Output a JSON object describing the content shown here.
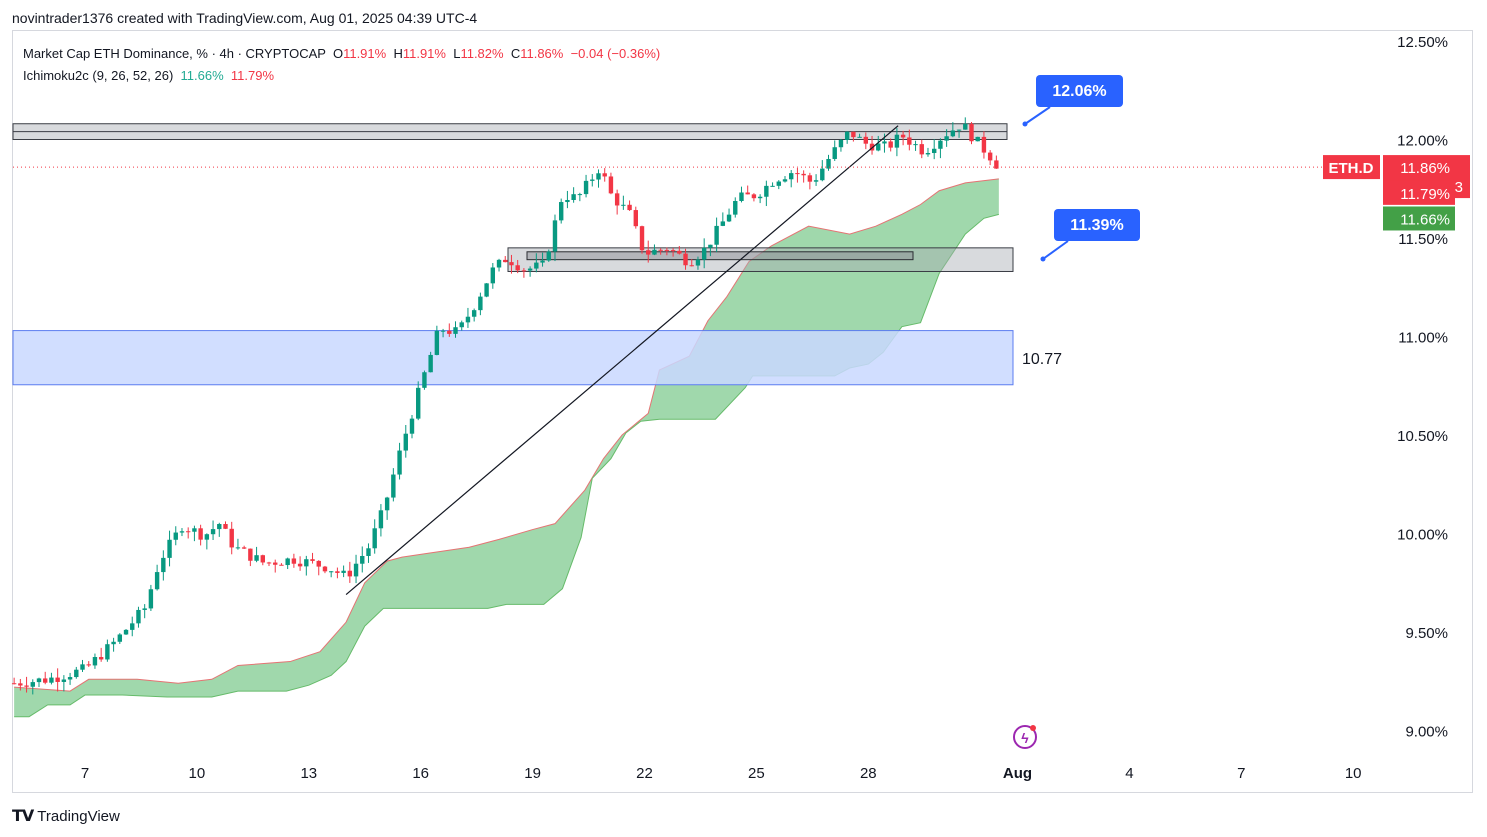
{
  "header": {
    "created_line": "novintrader1376 created with TradingView.com, Aug 01, 2025 04:39 UTC-4"
  },
  "legend": {
    "instrument": "Market Cap ETH Dominance, % · 4h · CRYPTOCAP",
    "o_label": "O",
    "o_value": "11.91%",
    "h_label": "H",
    "h_value": "11.91%",
    "l_label": "L",
    "l_value": "11.82%",
    "c_label": "C",
    "c_value": "11.86%",
    "change": "−0.04 (−0.36%)",
    "indicator": "Ichimoku2c (9, 26, 52, 26)",
    "indicator_v1": "11.66%",
    "indicator_v2": "11.79%"
  },
  "price_axis": {
    "ticks": [
      "12.50%",
      "12.00%",
      "11.50%",
      "11.00%",
      "10.50%",
      "10.00%",
      "9.50%",
      "9.00%"
    ],
    "symbol_tag": "ETH.D",
    "last_price": "11.86%",
    "countdown": "03:20:13",
    "cloud_red_tag": "11.79%",
    "cloud_green_tag": "11.66%"
  },
  "annotations": {
    "callout_upper": "12.06%",
    "callout_lower": "11.39%",
    "zone_label": "10.77"
  },
  "colors": {
    "up": "#089981",
    "down": "#f23645",
    "cloud": "#8fd19e",
    "zone_blue": "#c9d8ff",
    "callout": "#2962ff"
  },
  "brand": {
    "name": "TradingView"
  },
  "chart_data": {
    "type": "candlestick",
    "title": "Market Cap ETH Dominance, % · 4h · CRYPTOCAP",
    "ylim": [
      8.95,
      12.55
    ],
    "y_ticks": [
      9.0,
      9.5,
      10.0,
      10.5,
      11.0,
      11.5,
      12.0,
      12.5
    ],
    "x_ticks": [
      "7",
      "10",
      "13",
      "16",
      "19",
      "22",
      "25",
      "28",
      "Aug",
      "4",
      "7",
      "10"
    ],
    "x_range_days": [
      5.1,
      10.4
    ],
    "approx_close_path": [
      [
        5.1,
        9.24
      ],
      [
        6.0,
        9.26
      ],
      [
        7.0,
        9.31
      ],
      [
        7.8,
        9.45
      ],
      [
        8.6,
        9.62
      ],
      [
        9.0,
        9.86
      ],
      [
        9.6,
        10.04
      ],
      [
        10.2,
        9.99
      ],
      [
        10.6,
        10.05
      ],
      [
        11.0,
        9.93
      ],
      [
        11.8,
        9.85
      ],
      [
        12.6,
        9.87
      ],
      [
        13.5,
        9.83
      ],
      [
        14.0,
        9.78
      ],
      [
        14.6,
        9.93
      ],
      [
        15.0,
        10.12
      ],
      [
        15.5,
        10.45
      ],
      [
        16.0,
        10.75
      ],
      [
        16.5,
        11.04
      ],
      [
        17.0,
        11.02
      ],
      [
        17.5,
        11.18
      ],
      [
        17.9,
        11.33
      ],
      [
        18.3,
        11.4
      ],
      [
        18.8,
        11.34
      ],
      [
        19.3,
        11.36
      ],
      [
        19.8,
        11.72
      ],
      [
        20.2,
        11.7
      ],
      [
        20.8,
        11.86
      ],
      [
        21.1,
        11.72
      ],
      [
        21.6,
        11.62
      ],
      [
        22.0,
        11.42
      ],
      [
        22.6,
        11.45
      ],
      [
        23.2,
        11.38
      ],
      [
        23.6,
        11.44
      ],
      [
        24.0,
        11.55
      ],
      [
        24.5,
        11.7
      ],
      [
        25.0,
        11.72
      ],
      [
        25.5,
        11.8
      ],
      [
        26.0,
        11.84
      ],
      [
        26.5,
        11.78
      ],
      [
        27.0,
        11.92
      ],
      [
        27.5,
        12.04
      ],
      [
        27.9,
        11.98
      ],
      [
        28.5,
        11.96
      ],
      [
        28.9,
        12.02
      ],
      [
        29.5,
        11.94
      ],
      [
        30.0,
        12.02
      ],
      [
        30.5,
        12.08
      ],
      [
        30.9,
        11.99
      ],
      [
        31.3,
        11.91
      ],
      [
        31.5,
        11.86
      ]
    ],
    "last": {
      "open": 11.91,
      "high": 11.91,
      "low": 11.82,
      "close": 11.86,
      "change": -0.04,
      "change_pct": -0.36
    },
    "ichimoku_cloud_end": {
      "leading_a": 11.79,
      "leading_b": 11.66
    },
    "zones": [
      {
        "label": "resistance box",
        "from": 12.0,
        "to": 12.08
      },
      {
        "label": "support box",
        "from": 11.33,
        "to": 11.45
      },
      {
        "label": "10.77",
        "from": 10.77,
        "to": 11.03
      }
    ]
  }
}
